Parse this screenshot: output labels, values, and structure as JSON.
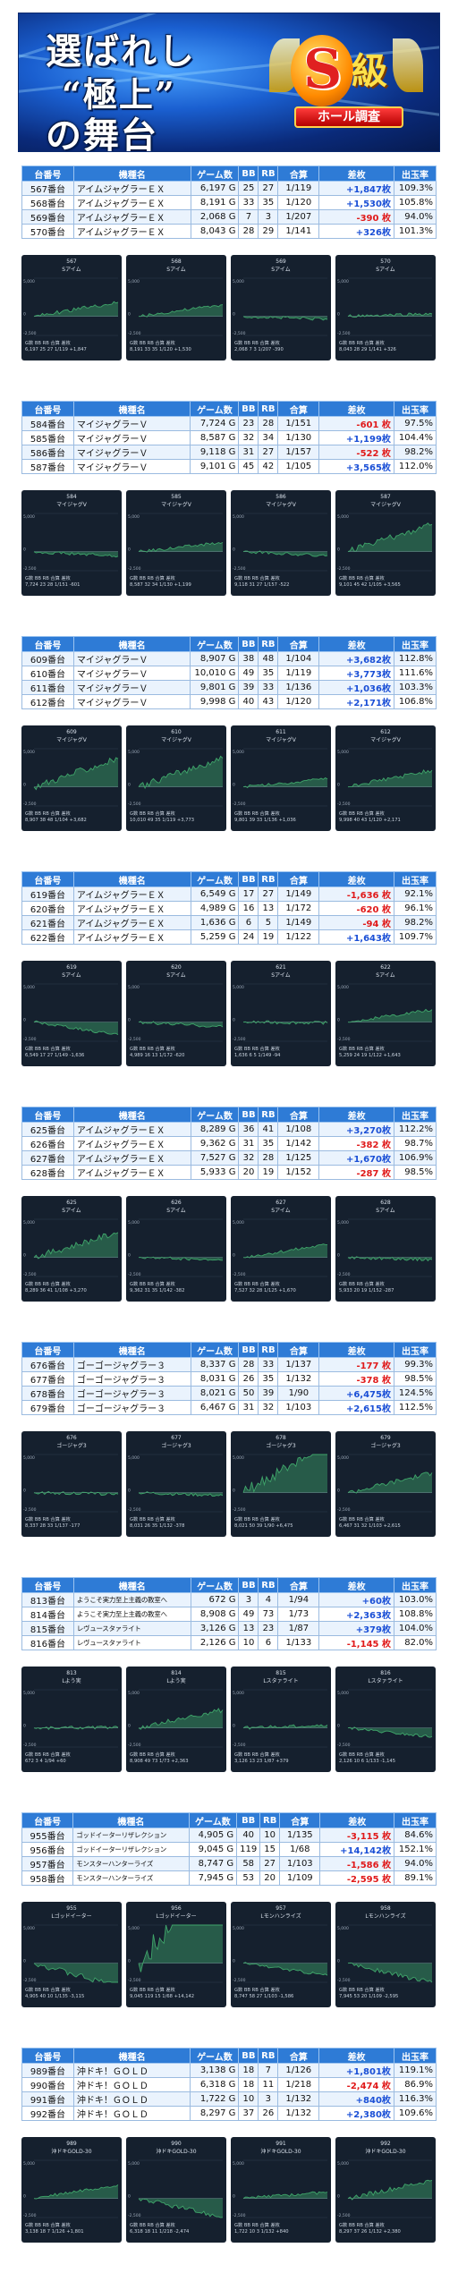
{
  "banner": {
    "line1": "選ばれし",
    "line2": "“極上”",
    "line3": "の舞台",
    "badge_letter": "S",
    "badge_kanji": "級",
    "badge_ribbon": "ホール調査"
  },
  "headers": [
    "台番号",
    "機種名",
    "ゲーム数",
    "BB",
    "RB",
    "合算",
    "差枚",
    "出玉率"
  ],
  "chart_axis": {
    "top": "5,000",
    "mid": "0",
    "bottom": "-2,500"
  },
  "chart_stat_labels": "G数 BB RB 合算 差枚",
  "colors": {
    "header": "#2e7bd6",
    "positive": "#1a4fd6",
    "negative": "#e01a1a",
    "chart_bg": "#15202e",
    "chart_line": "#3fa56a"
  },
  "groups": [
    {
      "rows": [
        {
          "no": "567番台",
          "name": "アイムジャグラーＥＸ",
          "games": "6,197 G",
          "bb": "25",
          "rb": "27",
          "total": "1/119",
          "diff": "+1,847枚",
          "rate": "109.3%"
        },
        {
          "no": "568番台",
          "name": "アイムジャグラーＥＸ",
          "games": "8,191 G",
          "bb": "33",
          "rb": "35",
          "total": "1/120",
          "diff": "+1,530枚",
          "rate": "105.8%"
        },
        {
          "no": "569番台",
          "name": "アイムジャグラーＥＸ",
          "games": "2,068 G",
          "bb": "7",
          "rb": "3",
          "total": "1/207",
          "diff": "-390 枚",
          "rate": "94.0%"
        },
        {
          "no": "570番台",
          "name": "アイムジャグラーＥＸ",
          "games": "8,043 G",
          "bb": "28",
          "rb": "29",
          "total": "1/141",
          "diff": "+326枚",
          "rate": "101.3%"
        }
      ],
      "panels": [
        {
          "no": "567",
          "name": "Sアイム",
          "stats": "6,197 25 27 1/119 +1,847",
          "diff": 1847
        },
        {
          "no": "568",
          "name": "Sアイム",
          "stats": "8,191 33 35 1/120 +1,530",
          "diff": 1530
        },
        {
          "no": "569",
          "name": "Sアイム",
          "stats": "2,068 7 3 1/207 -390",
          "diff": -390
        },
        {
          "no": "570",
          "name": "Sアイム",
          "stats": "8,043 28 29 1/141 +326",
          "diff": 326
        }
      ]
    },
    {
      "rows": [
        {
          "no": "584番台",
          "name": "マイジャグラーＶ",
          "games": "7,724 G",
          "bb": "23",
          "rb": "28",
          "total": "1/151",
          "diff": "-601 枚",
          "rate": "97.5%"
        },
        {
          "no": "585番台",
          "name": "マイジャグラーＶ",
          "games": "8,587 G",
          "bb": "32",
          "rb": "34",
          "total": "1/130",
          "diff": "+1,199枚",
          "rate": "104.4%"
        },
        {
          "no": "586番台",
          "name": "マイジャグラーＶ",
          "games": "9,118 G",
          "bb": "31",
          "rb": "27",
          "total": "1/157",
          "diff": "-522 枚",
          "rate": "98.2%"
        },
        {
          "no": "587番台",
          "name": "マイジャグラーＶ",
          "games": "9,101 G",
          "bb": "45",
          "rb": "42",
          "total": "1/105",
          "diff": "+3,565枚",
          "rate": "112.0%"
        }
      ],
      "panels": [
        {
          "no": "584",
          "name": "マイジャグV",
          "stats": "7,724 23 28 1/151 -601",
          "diff": -601
        },
        {
          "no": "585",
          "name": "マイジャグV",
          "stats": "8,587 32 34 1/130 +1,199",
          "diff": 1199
        },
        {
          "no": "586",
          "name": "マイジャグV",
          "stats": "9,118 31 27 1/157 -522",
          "diff": -522
        },
        {
          "no": "587",
          "name": "マイジャグV",
          "stats": "9,101 45 42 1/105 +3,565",
          "diff": 3565
        }
      ]
    },
    {
      "rows": [
        {
          "no": "609番台",
          "name": "マイジャグラーＶ",
          "games": "8,907 G",
          "bb": "38",
          "rb": "48",
          "total": "1/104",
          "diff": "+3,682枚",
          "rate": "112.8%"
        },
        {
          "no": "610番台",
          "name": "マイジャグラーＶ",
          "games": "10,010 G",
          "bb": "49",
          "rb": "35",
          "total": "1/119",
          "diff": "+3,773枚",
          "rate": "111.6%"
        },
        {
          "no": "611番台",
          "name": "マイジャグラーＶ",
          "games": "9,801 G",
          "bb": "39",
          "rb": "33",
          "total": "1/136",
          "diff": "+1,036枚",
          "rate": "103.3%"
        },
        {
          "no": "612番台",
          "name": "マイジャグラーＶ",
          "games": "9,998 G",
          "bb": "40",
          "rb": "43",
          "total": "1/120",
          "diff": "+2,171枚",
          "rate": "106.8%"
        }
      ],
      "panels": [
        {
          "no": "609",
          "name": "マイジャグV",
          "stats": "8,907 38 48 1/104 +3,682",
          "diff": 3682
        },
        {
          "no": "610",
          "name": "マイジャグV",
          "stats": "10,010 49 35 1/119 +3,773",
          "diff": 3773
        },
        {
          "no": "611",
          "name": "マイジャグV",
          "stats": "9,801 39 33 1/136 +1,036",
          "diff": 1036
        },
        {
          "no": "612",
          "name": "マイジャグV",
          "stats": "9,998 40 43 1/120 +2,171",
          "diff": 2171
        }
      ]
    },
    {
      "rows": [
        {
          "no": "619番台",
          "name": "アイムジャグラーＥＸ",
          "games": "6,549 G",
          "bb": "17",
          "rb": "27",
          "total": "1/149",
          "diff": "-1,636 枚",
          "rate": "92.1%"
        },
        {
          "no": "620番台",
          "name": "アイムジャグラーＥＸ",
          "games": "4,989 G",
          "bb": "16",
          "rb": "13",
          "total": "1/172",
          "diff": "-620 枚",
          "rate": "96.1%"
        },
        {
          "no": "621番台",
          "name": "アイムジャグラーＥＸ",
          "games": "1,636 G",
          "bb": "6",
          "rb": "5",
          "total": "1/149",
          "diff": "-94 枚",
          "rate": "98.2%"
        },
        {
          "no": "622番台",
          "name": "アイムジャグラーＥＸ",
          "games": "5,259 G",
          "bb": "24",
          "rb": "19",
          "total": "1/122",
          "diff": "+1,643枚",
          "rate": "109.7%"
        }
      ],
      "panels": [
        {
          "no": "619",
          "name": "Sアイム",
          "stats": "6,549 17 27 1/149 -1,636",
          "diff": -1636
        },
        {
          "no": "620",
          "name": "Sアイム",
          "stats": "4,989 16 13 1/172 -620",
          "diff": -620
        },
        {
          "no": "621",
          "name": "Sアイム",
          "stats": "1,636 6 5 1/149 -94",
          "diff": -94
        },
        {
          "no": "622",
          "name": "Sアイム",
          "stats": "5,259 24 19 1/122 +1,643",
          "diff": 1643
        }
      ]
    },
    {
      "rows": [
        {
          "no": "625番台",
          "name": "アイムジャグラーＥＸ",
          "games": "8,289 G",
          "bb": "36",
          "rb": "41",
          "total": "1/108",
          "diff": "+3,270枚",
          "rate": "112.2%"
        },
        {
          "no": "626番台",
          "name": "アイムジャグラーＥＸ",
          "games": "9,362 G",
          "bb": "31",
          "rb": "35",
          "total": "1/142",
          "diff": "-382 枚",
          "rate": "98.7%"
        },
        {
          "no": "627番台",
          "name": "アイムジャグラーＥＸ",
          "games": "7,527 G",
          "bb": "32",
          "rb": "28",
          "total": "1/125",
          "diff": "+1,670枚",
          "rate": "106.9%"
        },
        {
          "no": "628番台",
          "name": "アイムジャグラーＥＸ",
          "games": "5,933 G",
          "bb": "20",
          "rb": "19",
          "total": "1/152",
          "diff": "-287 枚",
          "rate": "98.5%"
        }
      ],
      "panels": [
        {
          "no": "625",
          "name": "Sアイム",
          "stats": "8,289 36 41 1/108 +3,270",
          "diff": 3270
        },
        {
          "no": "626",
          "name": "Sアイム",
          "stats": "9,362 31 35 1/142 -382",
          "diff": -382
        },
        {
          "no": "627",
          "name": "Sアイム",
          "stats": "7,527 32 28 1/125 +1,670",
          "diff": 1670
        },
        {
          "no": "628",
          "name": "Sアイム",
          "stats": "5,933 20 19 1/152 -287",
          "diff": -287
        }
      ]
    },
    {
      "rows": [
        {
          "no": "676番台",
          "name": "ゴーゴージャグラー３",
          "games": "8,337 G",
          "bb": "28",
          "rb": "33",
          "total": "1/137",
          "diff": "-177 枚",
          "rate": "99.3%"
        },
        {
          "no": "677番台",
          "name": "ゴーゴージャグラー３",
          "games": "8,031 G",
          "bb": "26",
          "rb": "35",
          "total": "1/132",
          "diff": "-378 枚",
          "rate": "98.5%"
        },
        {
          "no": "678番台",
          "name": "ゴーゴージャグラー３",
          "games": "8,021 G",
          "bb": "50",
          "rb": "39",
          "total": "1/90",
          "diff": "+6,475枚",
          "rate": "124.5%"
        },
        {
          "no": "679番台",
          "name": "ゴーゴージャグラー３",
          "games": "6,467 G",
          "bb": "31",
          "rb": "32",
          "total": "1/103",
          "diff": "+2,615枚",
          "rate": "112.5%"
        }
      ],
      "panels": [
        {
          "no": "676",
          "name": "ゴージャグ3",
          "stats": "8,337 28 33 1/137 -177",
          "diff": -177
        },
        {
          "no": "677",
          "name": "ゴージャグ3",
          "stats": "8,031 26 35 1/132 -378",
          "diff": -378
        },
        {
          "no": "678",
          "name": "ゴージャグ3",
          "stats": "8,021 50 39 1/90 +6,475",
          "diff": 6475
        },
        {
          "no": "679",
          "name": "ゴージャグ3",
          "stats": "6,467 31 32 1/103 +2,615",
          "diff": 2615
        }
      ]
    },
    {
      "small": true,
      "rows": [
        {
          "no": "813番台",
          "name": "ようこそ実力至上主義の教室へ",
          "games": "672 G",
          "bb": "3",
          "rb": "4",
          "total": "1/94",
          "diff": "+60枚",
          "rate": "103.0%"
        },
        {
          "no": "814番台",
          "name": "ようこそ実力至上主義の教室へ",
          "games": "8,908 G",
          "bb": "49",
          "rb": "73",
          "total": "1/73",
          "diff": "+2,363枚",
          "rate": "108.8%"
        },
        {
          "no": "815番台",
          "name": "レヴュースタァライト",
          "games": "3,126 G",
          "bb": "13",
          "rb": "23",
          "total": "1/87",
          "diff": "+379枚",
          "rate": "104.0%"
        },
        {
          "no": "816番台",
          "name": "レヴュースタァライト",
          "games": "2,126 G",
          "bb": "10",
          "rb": "6",
          "total": "1/133",
          "diff": "-1,145 枚",
          "rate": "82.0%"
        }
      ],
      "panels": [
        {
          "no": "813",
          "name": "Lよう実",
          "stats": "672 3 4 1/94 +60",
          "diff": 60
        },
        {
          "no": "814",
          "name": "Lよう実",
          "stats": "8,908 49 73 1/73 +2,363",
          "diff": 2363
        },
        {
          "no": "815",
          "name": "Lスタァライト",
          "stats": "3,126 13 23 1/87 +379",
          "diff": 379
        },
        {
          "no": "816",
          "name": "Lスタァライト",
          "stats": "2,126 10 6 1/133 -1,145",
          "diff": -1145
        }
      ]
    },
    {
      "small": true,
      "rows": [
        {
          "no": "955番台",
          "name": "ゴッドイーターリザレクション",
          "games": "4,905 G",
          "bb": "40",
          "rb": "10",
          "total": "1/135",
          "diff": "-3,115 枚",
          "rate": "84.6%"
        },
        {
          "no": "956番台",
          "name": "ゴッドイーターリザレクション",
          "games": "9,045 G",
          "bb": "119",
          "rb": "15",
          "total": "1/68",
          "diff": "+14,142枚",
          "rate": "152.1%"
        },
        {
          "no": "957番台",
          "name": "モンスターハンターライズ",
          "games": "8,747 G",
          "bb": "58",
          "rb": "27",
          "total": "1/103",
          "diff": "-1,586 枚",
          "rate": "94.0%"
        },
        {
          "no": "958番台",
          "name": "モンスターハンターライズ",
          "games": "7,945 G",
          "bb": "53",
          "rb": "20",
          "total": "1/109",
          "diff": "-2,595 枚",
          "rate": "89.1%"
        }
      ],
      "panels": [
        {
          "no": "955",
          "name": "Lゴッドイーター",
          "stats": "4,905 40 10 1/135 -3,115",
          "diff": -3115
        },
        {
          "no": "956",
          "name": "Lゴッドイーター",
          "stats": "9,045 119 15 1/68 +14,142",
          "diff": 14142
        },
        {
          "no": "957",
          "name": "Lモンハンライズ",
          "stats": "8,747 58 27 1/103 -1,586",
          "diff": -1586
        },
        {
          "no": "958",
          "name": "Lモンハンライズ",
          "stats": "7,945 53 20 1/109 -2,595",
          "diff": -2595
        }
      ]
    },
    {
      "rows": [
        {
          "no": "989番台",
          "name": "沖ドキ！ＧＯＬＤ",
          "games": "3,138 G",
          "bb": "18",
          "rb": "7",
          "total": "1/126",
          "diff": "+1,801枚",
          "rate": "119.1%"
        },
        {
          "no": "990番台",
          "name": "沖ドキ！ＧＯＬＤ",
          "games": "6,318 G",
          "bb": "18",
          "rb": "11",
          "total": "1/218",
          "diff": "-2,474 枚",
          "rate": "86.9%"
        },
        {
          "no": "991番台",
          "name": "沖ドキ！ＧＯＬＤ",
          "games": "1,722 G",
          "bb": "10",
          "rb": "3",
          "total": "1/132",
          "diff": "+840枚",
          "rate": "116.3%"
        },
        {
          "no": "992番台",
          "name": "沖ドキ！ＧＯＬＤ",
          "games": "8,297 G",
          "bb": "37",
          "rb": "26",
          "total": "1/132",
          "diff": "+2,380枚",
          "rate": "109.6%"
        }
      ],
      "panels": [
        {
          "no": "989",
          "name": "沖ドキGOLD-30",
          "stats": "3,138 18 7 1/126 +1,801",
          "diff": 1801
        },
        {
          "no": "990",
          "name": "沖ドキGOLD-30",
          "stats": "6,318 18 11 1/218 -2,474",
          "diff": -2474
        },
        {
          "no": "991",
          "name": "沖ドキGOLD-30",
          "stats": "1,722 10 3 1/132 +840",
          "diff": 840
        },
        {
          "no": "992",
          "name": "沖ドキGOLD-30",
          "stats": "8,297 37 26 1/132 +2,380",
          "diff": 2380
        }
      ]
    }
  ]
}
